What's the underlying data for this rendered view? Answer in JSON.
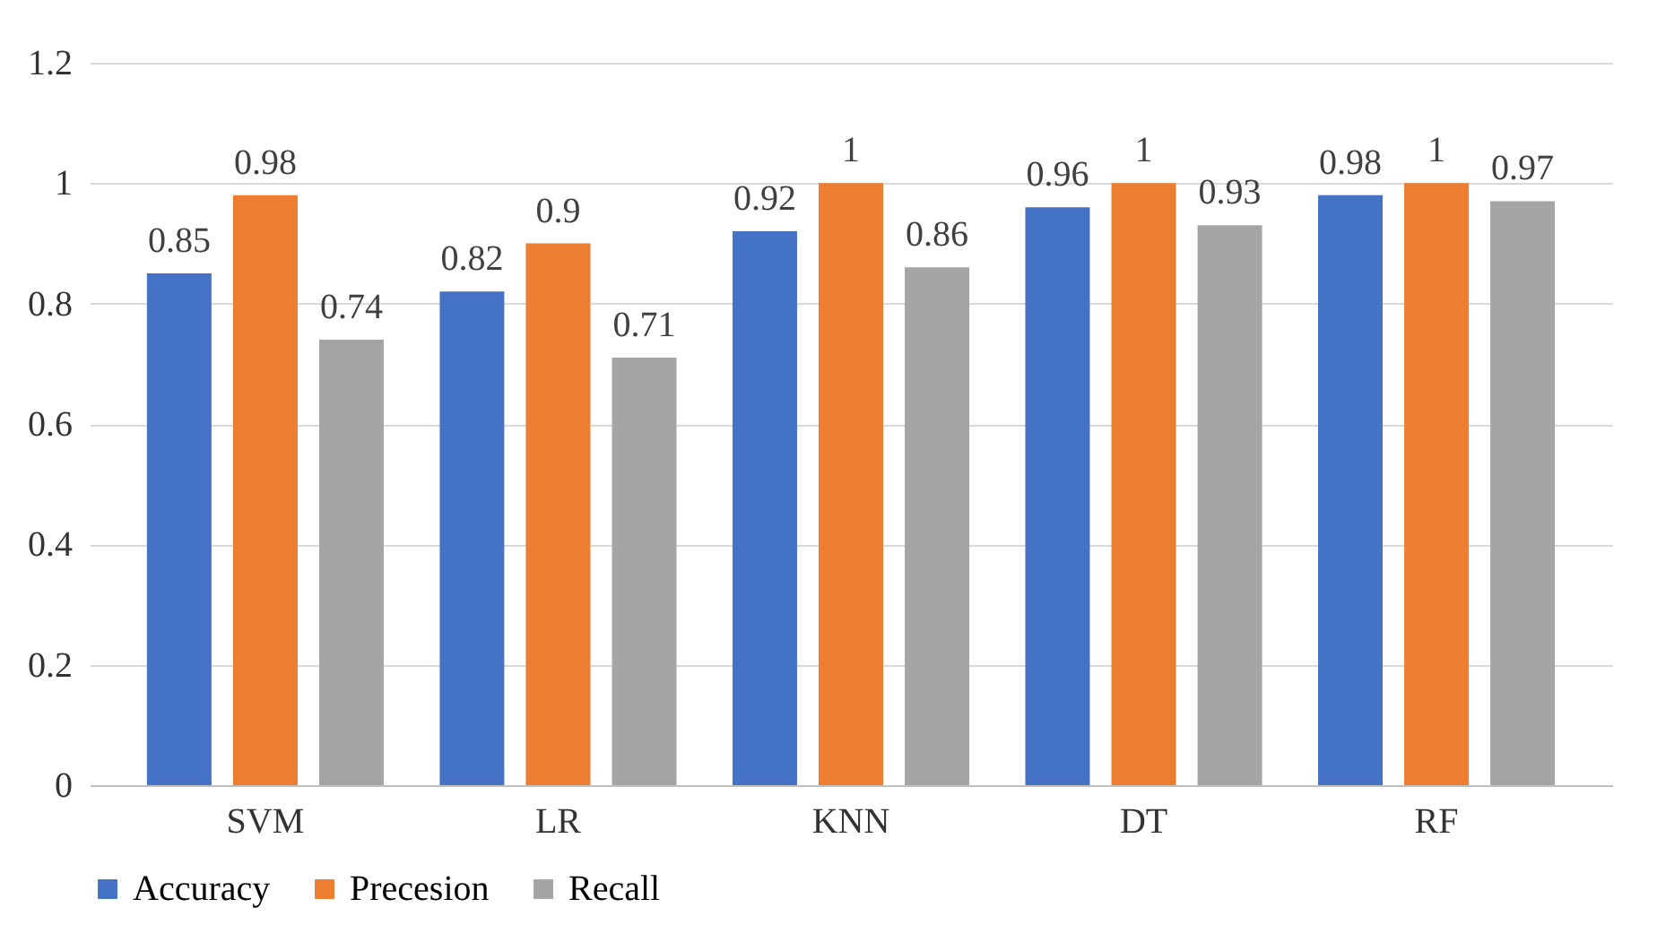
{
  "chart_data": {
    "type": "bar",
    "categories": [
      "SVM",
      "LR",
      "KNN",
      "DT",
      "RF"
    ],
    "series": [
      {
        "name": "Accuracy",
        "color": "#4472c4",
        "values": [
          0.85,
          0.82,
          0.92,
          0.96,
          0.98
        ]
      },
      {
        "name": "Precesion",
        "color": "#ed7d31",
        "values": [
          0.98,
          0.9,
          1,
          1,
          1
        ]
      },
      {
        "name": "Recall",
        "color": "#a5a5a5",
        "values": [
          0.74,
          0.71,
          0.86,
          0.93,
          0.97
        ]
      }
    ],
    "ylim": [
      0,
      1.2
    ],
    "yticks": [
      0,
      0.2,
      0.4,
      0.6,
      0.8,
      1,
      1.2
    ],
    "grid": "y",
    "legend": "bottom",
    "data_labels": true
  }
}
